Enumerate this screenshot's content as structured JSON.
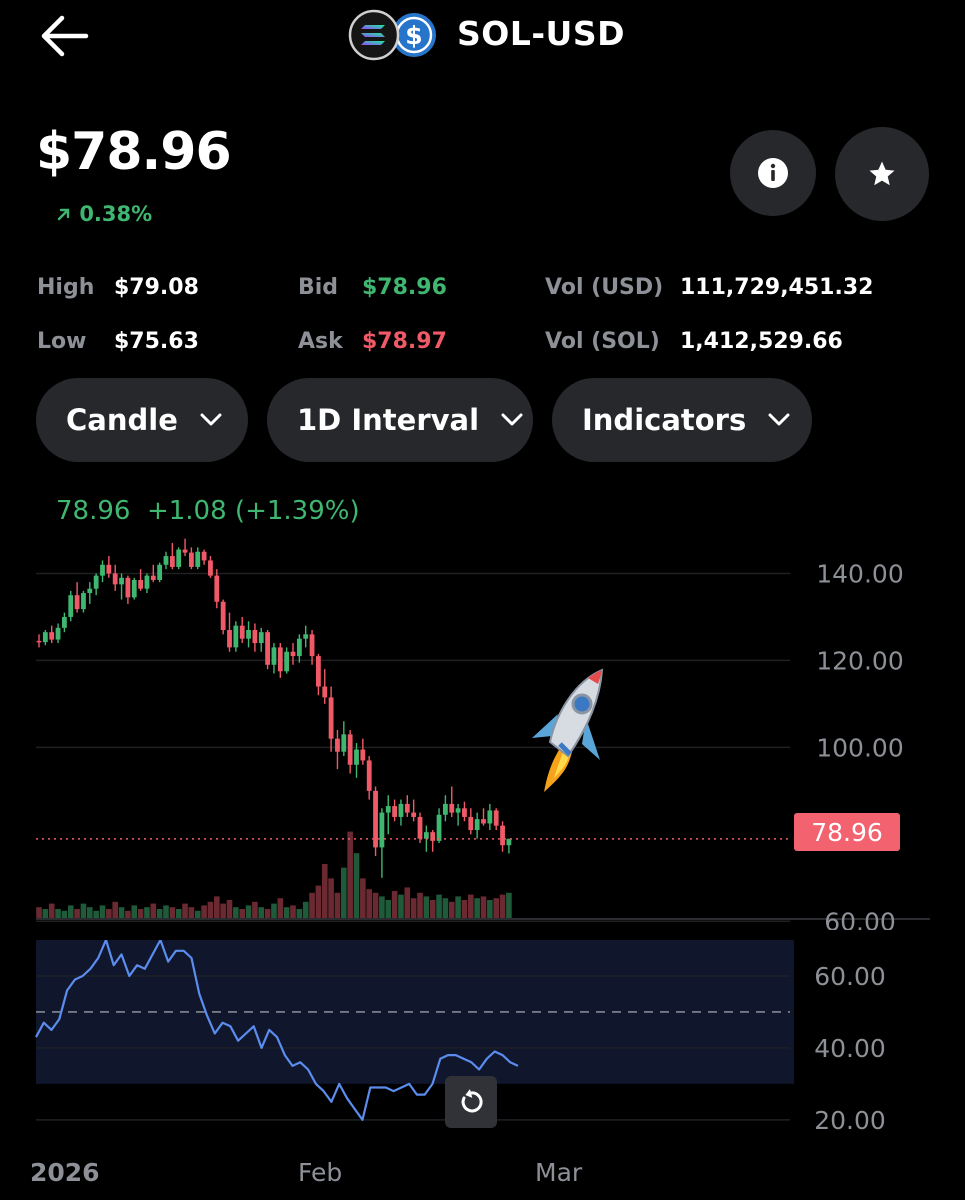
{
  "header": {
    "title": "SOL-USD",
    "back_icon": "arrow-left-icon",
    "base_icon": "solana-icon",
    "quote_icon": "usd-icon",
    "quote_icon_glyph": "$"
  },
  "price": {
    "value": "$78.96",
    "change": "0.38%",
    "change_icon": "arrow-up-right-icon",
    "change_color": "#3fb771"
  },
  "actions": {
    "info_icon": "info-icon",
    "star_icon": "star-icon"
  },
  "stats": {
    "high_label": "High",
    "high_value": "$79.08",
    "low_label": "Low",
    "low_value": "$75.63",
    "bid_label": "Bid",
    "bid_value": "$78.96",
    "ask_label": "Ask",
    "ask_value": "$78.97",
    "vol_usd_label": "Vol (USD)",
    "vol_usd_value": "111,729,451.32",
    "vol_sol_label": "Vol (SOL)",
    "vol_sol_value": "1,412,529.66"
  },
  "controls": {
    "chart_type": "Candle",
    "interval": "1D Interval",
    "indicators": "Indicators"
  },
  "colors": {
    "up": "#3fb771",
    "down": "#f05a68",
    "rsi_line": "#5b8def",
    "background": "#000000",
    "pill_bg": "#26282c"
  },
  "chart_data": {
    "type": "candlestick",
    "legend": {
      "last": "78.96",
      "change": "+1.08",
      "change_pct": "(+1.39%)"
    },
    "y_ticks": [
      "140.00",
      "120.00",
      "100.00",
      "60.00"
    ],
    "ylim": [
      58,
      150
    ],
    "last_price": 78.96,
    "last_price_label": "78.96",
    "x_labels": [
      "2026",
      "Feb",
      "Mar"
    ],
    "candles": [
      [
        124.5,
        126,
        123,
        124.2
      ],
      [
        124.2,
        127,
        123.5,
        126.5
      ],
      [
        126.5,
        128,
        124,
        124.8
      ],
      [
        124.8,
        128.5,
        124,
        127.5
      ],
      [
        127.5,
        131,
        126.5,
        130
      ],
      [
        130,
        136,
        129,
        135
      ],
      [
        135,
        138,
        131,
        131.8
      ],
      [
        131.8,
        136,
        131,
        135.5
      ],
      [
        135.5,
        138,
        133,
        136.5
      ],
      [
        136.5,
        140,
        135,
        139.5
      ],
      [
        139.5,
        143,
        138,
        142
      ],
      [
        142,
        144,
        139,
        140
      ],
      [
        140,
        142,
        136,
        137.5
      ],
      [
        137.5,
        140,
        134,
        139
      ],
      [
        139,
        139.5,
        133,
        134.5
      ],
      [
        134.5,
        139,
        134,
        138.5
      ],
      [
        138.5,
        141,
        136,
        136.5
      ],
      [
        136.5,
        140,
        135.5,
        139.5
      ],
      [
        139.5,
        142,
        138,
        138.5
      ],
      [
        138.5,
        142.5,
        138,
        142
      ],
      [
        142,
        145,
        141,
        144
      ],
      [
        144,
        147,
        141,
        141.5
      ],
      [
        141.5,
        146,
        141,
        145.5
      ],
      [
        145.5,
        148,
        144,
        144.8
      ],
      [
        144.8,
        146,
        141,
        141.5
      ],
      [
        141.5,
        146,
        141,
        145
      ],
      [
        145,
        145.5,
        142,
        143
      ],
      [
        143,
        144,
        139,
        139.5
      ],
      [
        139.5,
        141,
        132,
        133.5
      ],
      [
        133.5,
        134,
        126,
        127
      ],
      [
        127,
        131,
        122,
        123
      ],
      [
        123,
        129,
        122,
        128
      ],
      [
        128,
        130,
        124,
        125
      ],
      [
        125,
        129,
        123,
        127
      ],
      [
        127,
        128.5,
        122,
        124
      ],
      [
        124,
        127.5,
        122,
        126.5
      ],
      [
        126.5,
        127,
        118,
        119
      ],
      [
        119,
        124,
        117,
        123
      ],
      [
        123,
        124,
        116,
        117.5
      ],
      [
        117.5,
        123,
        117,
        122
      ],
      [
        122,
        124,
        119,
        121
      ],
      [
        121,
        126,
        119.5,
        125
      ],
      [
        125,
        128,
        123,
        126
      ],
      [
        126,
        127,
        119,
        121
      ],
      [
        121,
        121.5,
        112,
        114
      ],
      [
        114,
        118,
        110,
        111.5
      ],
      [
        111.5,
        114,
        99,
        102
      ],
      [
        102,
        104,
        95,
        99
      ],
      [
        99,
        106,
        98,
        103
      ],
      [
        103,
        104,
        94,
        96
      ],
      [
        96,
        101,
        93,
        99.5
      ],
      [
        99.5,
        102,
        96,
        97
      ],
      [
        97,
        98,
        88,
        90
      ],
      [
        90,
        91,
        75,
        77
      ],
      [
        77,
        86,
        70,
        85
      ],
      [
        85,
        89,
        80,
        86.5
      ],
      [
        86.5,
        88,
        83,
        84
      ],
      [
        84,
        88,
        82,
        87
      ],
      [
        87,
        89,
        84,
        85
      ],
      [
        85,
        88,
        83,
        84
      ],
      [
        84,
        85,
        78,
        79
      ],
      [
        79,
        82,
        76,
        80.5
      ],
      [
        80.5,
        81,
        76,
        78.5
      ],
      [
        78.5,
        86,
        78,
        84.5
      ],
      [
        84.5,
        89,
        83,
        87
      ],
      [
        87,
        91,
        84,
        85
      ],
      [
        85,
        87,
        82,
        86
      ],
      [
        86,
        87.5,
        83,
        84
      ],
      [
        84,
        86,
        80,
        81
      ],
      [
        81,
        85,
        79,
        83.5
      ],
      [
        83.5,
        86,
        82,
        82.5
      ],
      [
        82.5,
        87,
        81,
        85.5
      ],
      [
        85.5,
        86,
        81,
        82
      ],
      [
        82,
        83,
        76,
        77.5
      ],
      [
        77.5,
        79,
        75.6,
        78.96
      ]
    ],
    "volume_max": 50,
    "volumes": [
      6,
      5,
      8,
      5,
      4,
      7,
      5,
      8,
      6,
      4,
      7,
      5,
      9,
      6,
      4,
      7,
      5,
      6,
      8,
      5,
      7,
      6,
      5,
      8,
      6,
      4,
      7,
      9,
      12,
      8,
      10,
      6,
      5,
      7,
      9,
      6,
      5,
      8,
      11,
      6,
      7,
      5,
      9,
      14,
      18,
      30,
      22,
      14,
      28,
      48,
      36,
      22,
      16,
      14,
      12,
      10,
      15,
      13,
      17,
      11,
      14,
      12,
      10,
      13,
      11,
      9,
      12,
      10,
      13,
      11,
      12,
      10,
      11,
      13,
      14
    ],
    "rsi": {
      "y_ticks": [
        "60.00",
        "40.00",
        "20.00"
      ],
      "ylim": [
        13,
        70
      ],
      "midline": 50,
      "band": [
        30,
        70
      ],
      "values": [
        43,
        47,
        45,
        48,
        56,
        59,
        60,
        62,
        65,
        70,
        63,
        66,
        60,
        63,
        62,
        66,
        70,
        64,
        67,
        67,
        65,
        55,
        49,
        44,
        47,
        46,
        42,
        44,
        46,
        40,
        45,
        43,
        38,
        35,
        36,
        34,
        30,
        28,
        25,
        30,
        26,
        23,
        20,
        29,
        29,
        29,
        28,
        29,
        30,
        27,
        27,
        30,
        37,
        38,
        38,
        37,
        36,
        34,
        37,
        39,
        38,
        36,
        35
      ],
      "reset_icon": "reset-icon"
    }
  }
}
